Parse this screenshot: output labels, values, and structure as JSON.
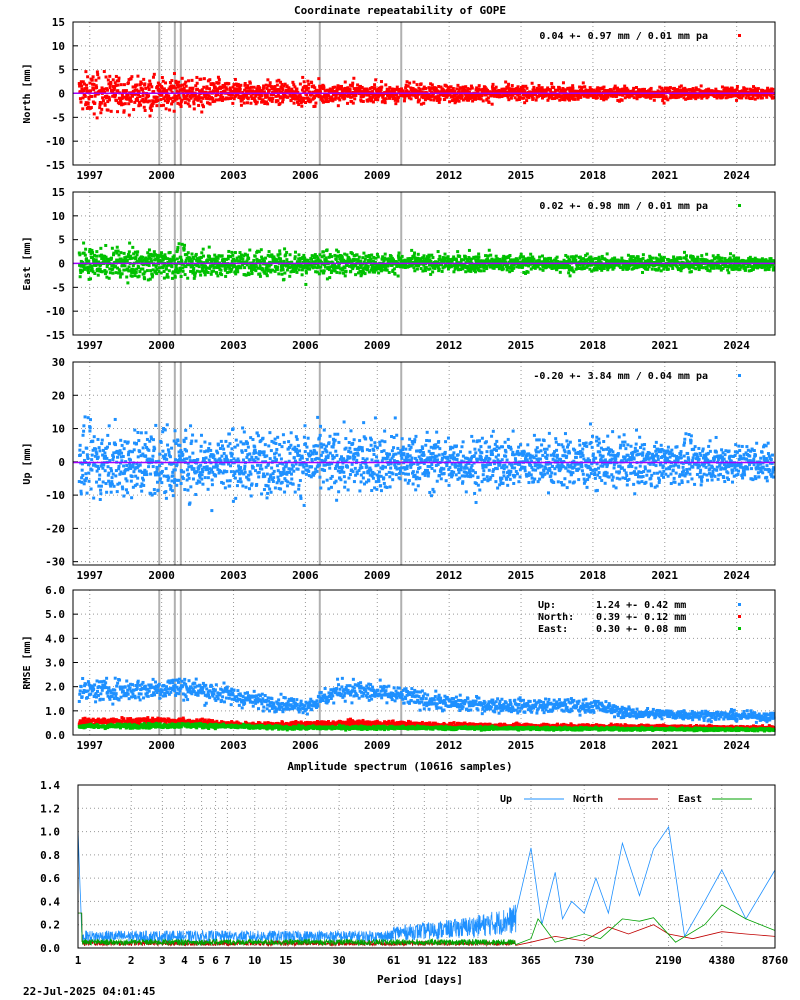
{
  "footer": "22-Jul-2025 04:01:45",
  "colors": {
    "north": "#ff0000",
    "east": "#00c000",
    "up": "#1e90ff",
    "mean_line": "#a000ff",
    "break_line": "#b0b0b0"
  },
  "chart_data": [
    {
      "type": "scatter",
      "id": "north",
      "title": "Coordinate repeatability of GOPE",
      "ylabel": "North [mm]",
      "ylim": [
        -15,
        15
      ],
      "yticks": [
        15,
        10,
        5,
        0,
        -5,
        -10,
        -15
      ],
      "xlim": [
        1996.3,
        2025.6
      ],
      "xticks": [
        1997,
        2000,
        2003,
        2006,
        2009,
        2012,
        2015,
        2018,
        2021,
        2024
      ],
      "grid": true,
      "legend": "0.04 +- 0.97 mm /  0.01 mm pa",
      "legend_position": "top-right",
      "color": "#ff0000",
      "mean": 0.04,
      "sigma": 0.97,
      "rate": 0.01,
      "breaks": [
        1999.9,
        2000.55,
        2000.8,
        2006.6,
        2010.0
      ],
      "envelope": [
        [
          1996.5,
          4.5
        ],
        [
          2000,
          3.5
        ],
        [
          2002,
          3
        ],
        [
          2006,
          2.5
        ],
        [
          2010,
          2
        ],
        [
          2018,
          1.5
        ],
        [
          2025.5,
          1.3
        ]
      ],
      "series_start": 1996.5,
      "series_end": 2025.5
    },
    {
      "type": "scatter",
      "id": "east",
      "ylabel": "East [mm]",
      "ylim": [
        -15,
        15
      ],
      "yticks": [
        15,
        10,
        5,
        0,
        -5,
        -10,
        -15
      ],
      "xlim": [
        1996.3,
        2025.6
      ],
      "xticks": [
        1997,
        2000,
        2003,
        2006,
        2009,
        2012,
        2015,
        2018,
        2021,
        2024
      ],
      "grid": true,
      "legend": "0.02 +- 0.98 mm /  0.01 mm pa",
      "legend_position": "top-right",
      "color": "#00c000",
      "mean": 0.02,
      "sigma": 0.98,
      "rate": 0.01,
      "breaks": [
        1999.9,
        2000.55,
        2000.8,
        2006.6,
        2010.0
      ],
      "envelope": [
        [
          1996.5,
          3
        ],
        [
          2000,
          3.5
        ],
        [
          2002,
          3
        ],
        [
          2006,
          3
        ],
        [
          2010,
          2
        ],
        [
          2018,
          1.8
        ],
        [
          2025.5,
          1.5
        ]
      ],
      "series_start": 1996.5,
      "series_end": 2025.5
    },
    {
      "type": "scatter",
      "id": "up",
      "ylabel": "Up [mm]",
      "ylim": [
        -31,
        30
      ],
      "yticks": [
        30,
        20,
        10,
        0,
        -10,
        -20,
        -30
      ],
      "xlim": [
        1996.3,
        2025.6
      ],
      "xticks": [
        1997,
        2000,
        2003,
        2006,
        2009,
        2012,
        2015,
        2018,
        2021,
        2024
      ],
      "grid": true,
      "legend": "-0.20 +- 3.84 mm /  0.04 mm pa",
      "legend_position": "top-right",
      "color": "#1e90ff",
      "mean": -0.2,
      "sigma": 3.84,
      "rate": 0.04,
      "breaks": [
        1999.9,
        2000.55,
        2000.8,
        2006.6,
        2010.0
      ],
      "envelope": [
        [
          1996.5,
          11
        ],
        [
          2000,
          12
        ],
        [
          2002,
          10
        ],
        [
          2006,
          10
        ],
        [
          2010,
          9
        ],
        [
          2018,
          8
        ],
        [
          2025.5,
          6
        ]
      ],
      "series_start": 1996.5,
      "series_end": 2025.5
    },
    {
      "type": "scatter",
      "id": "rmse",
      "ylabel": "RMSE [mm]",
      "ylim": [
        0,
        6
      ],
      "yticks": [
        6.0,
        5.0,
        4.0,
        3.0,
        2.0,
        1.0,
        0.0
      ],
      "xlim": [
        1996.3,
        2025.6
      ],
      "xticks": [
        1997,
        2000,
        2003,
        2006,
        2009,
        2012,
        2015,
        2018,
        2021,
        2024
      ],
      "grid": true,
      "legend_position": "top-right",
      "breaks": [
        1999.9,
        2000.55,
        2000.8,
        2006.6,
        2010.0
      ],
      "series": [
        {
          "name": "Up:",
          "text": "1.24 +- 0.42 mm",
          "color": "#1e90ff",
          "level": [
            [
              1996.5,
              1.8
            ],
            [
              1999.5,
              1.9
            ],
            [
              2000.5,
              2.0
            ],
            [
              2002,
              1.8
            ],
            [
              2004,
              1.4
            ],
            [
              2006,
              1.2
            ],
            [
              2007.5,
              1.9
            ],
            [
              2010,
              1.6
            ],
            [
              2012,
              1.3
            ],
            [
              2015,
              1.2
            ],
            [
              2018,
              1.2
            ],
            [
              2019.5,
              0.9
            ],
            [
              2025.5,
              0.75
            ]
          ]
        },
        {
          "name": "North:",
          "text": "0.39 +- 0.12 mm",
          "color": "#ff0000",
          "level": [
            [
              1996.5,
              0.55
            ],
            [
              2000,
              0.6
            ],
            [
              2004,
              0.4
            ],
            [
              2008,
              0.5
            ],
            [
              2012,
              0.4
            ],
            [
              2019,
              0.35
            ],
            [
              2025.5,
              0.3
            ]
          ]
        },
        {
          "name": "East:",
          "text": "0.30 +- 0.08 mm",
          "color": "#00c000",
          "level": [
            [
              1996.5,
              0.35
            ],
            [
              2001,
              0.4
            ],
            [
              2005,
              0.3
            ],
            [
              2010,
              0.3
            ],
            [
              2019,
              0.25
            ],
            [
              2025.5,
              0.22
            ]
          ]
        }
      ]
    },
    {
      "type": "line",
      "id": "spectrum",
      "title": "Amplitude spectrum (10616 samples)",
      "xlabel": "Period [days]",
      "xscale": "log",
      "xlim": [
        1,
        8760
      ],
      "ylim": [
        0,
        1.4
      ],
      "yticks": [
        1.4,
        1.2,
        1.0,
        0.8,
        0.6,
        0.4,
        0.2,
        0.0
      ],
      "xticks": [
        1,
        2,
        3,
        4,
        5,
        6,
        7,
        10,
        15,
        30,
        61,
        91,
        122,
        183,
        365,
        730,
        2190,
        4380,
        8760
      ],
      "xtick_labels": [
        "1",
        "2",
        "3",
        "4",
        "5",
        "6",
        "7",
        "10",
        "15",
        "30",
        "61",
        "91",
        "122",
        "183",
        "365",
        "730",
        "2190",
        "4380",
        "8760"
      ],
      "grid": true,
      "legend_position": "top-right",
      "series": [
        {
          "name": "Up",
          "color": "#1e90ff",
          "points": [
            [
              300,
              0.3
            ],
            [
              365,
              0.86
            ],
            [
              420,
              0.2
            ],
            [
              500,
              0.65
            ],
            [
              550,
              0.25
            ],
            [
              620,
              0.4
            ],
            [
              730,
              0.3
            ],
            [
              850,
              0.6
            ],
            [
              1000,
              0.3
            ],
            [
              1200,
              0.9
            ],
            [
              1500,
              0.45
            ],
            [
              1800,
              0.85
            ],
            [
              2190,
              1.04
            ],
            [
              2700,
              0.1
            ],
            [
              3500,
              0.4
            ],
            [
              4380,
              0.67
            ],
            [
              6000,
              0.25
            ],
            [
              8760,
              0.67
            ]
          ],
          "floor": 0.1
        },
        {
          "name": "North",
          "color": "#c00000",
          "points": [
            [
              365,
              0.05
            ],
            [
              500,
              0.1
            ],
            [
              730,
              0.06
            ],
            [
              1000,
              0.18
            ],
            [
              1300,
              0.12
            ],
            [
              1800,
              0.2
            ],
            [
              2190,
              0.12
            ],
            [
              3000,
              0.08
            ],
            [
              4380,
              0.14
            ],
            [
              6000,
              0.12
            ],
            [
              8760,
              0.1
            ]
          ],
          "floor": 0.04
        },
        {
          "name": "East",
          "color": "#00a000",
          "points": [
            [
              365,
              0.08
            ],
            [
              400,
              0.25
            ],
            [
              500,
              0.05
            ],
            [
              730,
              0.12
            ],
            [
              900,
              0.08
            ],
            [
              1200,
              0.25
            ],
            [
              1500,
              0.23
            ],
            [
              1800,
              0.26
            ],
            [
              2400,
              0.05
            ],
            [
              3500,
              0.2
            ],
            [
              4380,
              0.37
            ],
            [
              6000,
              0.25
            ],
            [
              8760,
              0.15
            ]
          ],
          "floor": 0.05
        }
      ]
    }
  ]
}
